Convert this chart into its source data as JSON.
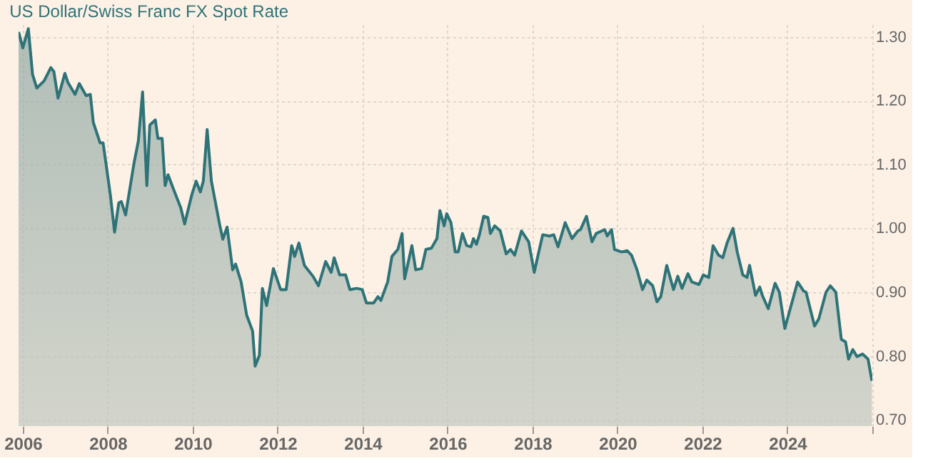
{
  "chart_data": {
    "type": "area",
    "title": "US Dollar/Swiss Franc FX Spot Rate",
    "x": [
      2005.9,
      2006.0,
      2006.13,
      2006.23,
      2006.33,
      2006.5,
      2006.66,
      2006.73,
      2006.83,
      2006.99,
      2007.06,
      2007.23,
      2007.33,
      2007.49,
      2007.59,
      2007.66,
      2007.82,
      2007.89,
      2008.06,
      2008.16,
      2008.26,
      2008.32,
      2008.42,
      2008.62,
      2008.72,
      2008.82,
      2008.92,
      2008.99,
      2009.12,
      2009.18,
      2009.28,
      2009.35,
      2009.42,
      2009.55,
      2009.72,
      2009.81,
      2009.98,
      2010.08,
      2010.18,
      2010.25,
      2010.34,
      2010.44,
      2010.64,
      2010.71,
      2010.81,
      2010.94,
      2011.01,
      2011.14,
      2011.27,
      2011.41,
      2011.47,
      2011.57,
      2011.64,
      2011.74,
      2011.9,
      2012.07,
      2012.2,
      2012.33,
      2012.4,
      2012.5,
      2012.63,
      2012.83,
      2012.96,
      2013.13,
      2013.26,
      2013.33,
      2013.46,
      2013.6,
      2013.7,
      2013.86,
      2013.99,
      2014.09,
      2014.26,
      2014.36,
      2014.43,
      2014.59,
      2014.69,
      2014.83,
      2014.93,
      2014.99,
      2015.16,
      2015.25,
      2015.39,
      2015.49,
      2015.62,
      2015.75,
      2015.82,
      2015.92,
      2015.98,
      2016.08,
      2016.18,
      2016.25,
      2016.35,
      2016.45,
      2016.55,
      2016.61,
      2016.68,
      2016.75,
      2016.85,
      2016.95,
      2017.01,
      2017.11,
      2017.24,
      2017.38,
      2017.48,
      2017.58,
      2017.74,
      2017.91,
      2018.04,
      2018.11,
      2018.24,
      2018.4,
      2018.5,
      2018.6,
      2018.77,
      2018.93,
      2019.07,
      2019.13,
      2019.27,
      2019.4,
      2019.5,
      2019.7,
      2019.76,
      2019.86,
      2019.93,
      2020.1,
      2020.23,
      2020.33,
      2020.46,
      2020.59,
      2020.69,
      2020.83,
      2020.93,
      2021.02,
      2021.16,
      2021.32,
      2021.42,
      2021.52,
      2021.66,
      2021.75,
      2021.92,
      2022.02,
      2022.15,
      2022.25,
      2022.38,
      2022.48,
      2022.58,
      2022.72,
      2022.82,
      2022.95,
      2023.05,
      2023.11,
      2023.25,
      2023.35,
      2023.41,
      2023.55,
      2023.71,
      2023.81,
      2023.94,
      2024.24,
      2024.38,
      2024.44,
      2024.64,
      2024.74,
      2024.91,
      2025.01,
      2025.14,
      2025.27,
      2025.37,
      2025.44,
      2025.54,
      2025.64,
      2025.77,
      2025.9,
      2025.99
    ],
    "series": [
      {
        "color": "#2e7378",
        "values": [
          1.308,
          1.283,
          1.313,
          1.241,
          1.22,
          1.231,
          1.252,
          1.246,
          1.204,
          1.243,
          1.229,
          1.21,
          1.227,
          1.208,
          1.21,
          1.166,
          1.134,
          1.134,
          1.053,
          0.994,
          1.04,
          1.042,
          1.021,
          1.103,
          1.137,
          1.214,
          1.067,
          1.162,
          1.17,
          1.141,
          1.141,
          1.067,
          1.084,
          1.061,
          1.032,
          1.007,
          1.053,
          1.074,
          1.057,
          1.074,
          1.155,
          1.074,
          1.004,
          0.983,
          1.002,
          0.935,
          0.944,
          0.916,
          0.864,
          0.839,
          0.784,
          0.801,
          0.906,
          0.879,
          0.937,
          0.904,
          0.904,
          0.973,
          0.956,
          0.977,
          0.942,
          0.925,
          0.91,
          0.948,
          0.931,
          0.954,
          0.927,
          0.927,
          0.904,
          0.906,
          0.904,
          0.883,
          0.883,
          0.893,
          0.887,
          0.916,
          0.956,
          0.967,
          0.992,
          0.921,
          0.973,
          0.935,
          0.937,
          0.967,
          0.969,
          0.984,
          1.028,
          1.004,
          1.023,
          1.009,
          0.963,
          0.963,
          0.992,
          0.973,
          0.971,
          0.984,
          0.975,
          0.99,
          1.019,
          1.017,
          0.992,
          1.004,
          0.996,
          0.96,
          0.967,
          0.958,
          0.996,
          0.979,
          0.931,
          0.952,
          0.99,
          0.988,
          0.99,
          0.971,
          1.009,
          0.984,
          0.996,
          0.998,
          1.019,
          0.979,
          0.992,
          0.998,
          0.988,
          0.998,
          0.967,
          0.963,
          0.965,
          0.958,
          0.935,
          0.904,
          0.919,
          0.91,
          0.885,
          0.893,
          0.942,
          0.904,
          0.925,
          0.906,
          0.929,
          0.916,
          0.912,
          0.927,
          0.923,
          0.973,
          0.958,
          0.954,
          0.977,
          1.0,
          0.963,
          0.927,
          0.923,
          0.942,
          0.895,
          0.908,
          0.895,
          0.874,
          0.914,
          0.9,
          0.843,
          0.916,
          0.902,
          0.9,
          0.847,
          0.858,
          0.9,
          0.91,
          0.9,
          0.826,
          0.822,
          0.795,
          0.81,
          0.799,
          0.803,
          0.795,
          0.761
        ]
      }
    ],
    "xlim": [
      2005.9,
      2026.0
    ],
    "xticks": [
      2006,
      2008,
      2010,
      2012,
      2014,
      2016,
      2018,
      2020,
      2022,
      2024,
      {
        "value": 2026,
        "label": null
      }
    ],
    "ylim": [
      0.69,
      1.32
    ],
    "yticks": [
      {
        "value": 0.7,
        "label": "0.70"
      },
      {
        "value": 0.8,
        "label": "0.80"
      },
      {
        "value": 0.9,
        "label": "0.90"
      },
      {
        "value": 1.0,
        "label": "1.00"
      },
      {
        "value": 1.1,
        "label": "1.10"
      },
      {
        "value": 1.2,
        "label": "1.20"
      },
      {
        "value": 1.3,
        "label": "1.30"
      }
    ],
    "grid": true,
    "legend": false,
    "marker": "none",
    "line_style": "solid"
  }
}
